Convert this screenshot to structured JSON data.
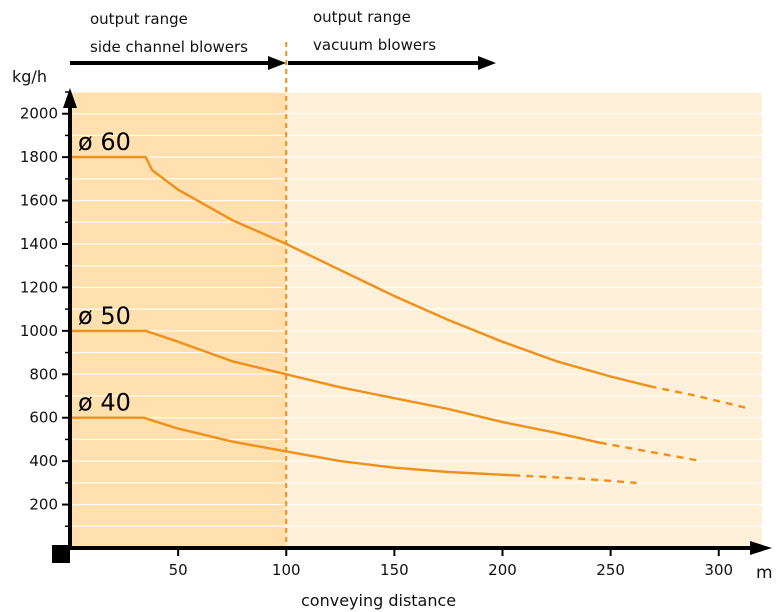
{
  "colors": {
    "zone_side_channel": "#FFE0AE",
    "zone_vacuum": "#FFF0D9",
    "curve": "#F0901A",
    "divider": "#F0901A",
    "grid": "#ffffff",
    "axis": "#000000"
  },
  "header": {
    "side_channel_line1": "output range",
    "side_channel_line2": "side channel blowers",
    "vacuum_line1": "output range",
    "vacuum_line2": "vacuum blowers"
  },
  "chart_data": {
    "type": "line",
    "xlabel": "conveying distance",
    "x_unit": "m",
    "ylabel": "kg/h",
    "xlim": [
      0,
      320
    ],
    "ylim": [
      0,
      2100
    ],
    "x_ticks": [
      50,
      100,
      150,
      200,
      250,
      300
    ],
    "x_tick_labels": [
      "50",
      "100",
      "150",
      "200",
      "250",
      "300"
    ],
    "y_ticks": [
      200,
      400,
      600,
      800,
      1000,
      1200,
      1400,
      1600,
      1800,
      2000
    ],
    "y_tick_labels": [
      "200",
      "400",
      "600",
      "800",
      "1000",
      "1200",
      "1400",
      "1600",
      "1800",
      "2000"
    ],
    "divider_x": 100,
    "zones": [
      {
        "name": "output range side channel blowers",
        "x_range": [
          0,
          100
        ]
      },
      {
        "name": "output range vacuum blowers",
        "x_range": [
          100,
          320
        ]
      }
    ],
    "series": [
      {
        "name": "ø 60",
        "values_solid": [
          [
            0,
            1800
          ],
          [
            35,
            1800
          ],
          [
            38,
            1740
          ],
          [
            50,
            1650
          ],
          [
            75,
            1510
          ],
          [
            100,
            1400
          ],
          [
            125,
            1280
          ],
          [
            150,
            1160
          ],
          [
            175,
            1050
          ],
          [
            200,
            950
          ],
          [
            225,
            860
          ],
          [
            250,
            790
          ],
          [
            268,
            745
          ]
        ],
        "values_dashed": [
          [
            268,
            745
          ],
          [
            290,
            700
          ],
          [
            315,
            640
          ]
        ]
      },
      {
        "name": "ø 50",
        "values_solid": [
          [
            0,
            1000
          ],
          [
            35,
            1000
          ],
          [
            50,
            950
          ],
          [
            75,
            860
          ],
          [
            100,
            800
          ],
          [
            125,
            740
          ],
          [
            150,
            690
          ],
          [
            175,
            640
          ],
          [
            200,
            580
          ],
          [
            225,
            530
          ],
          [
            245,
            485
          ]
        ],
        "values_dashed": [
          [
            245,
            485
          ],
          [
            270,
            440
          ],
          [
            292,
            400
          ]
        ]
      },
      {
        "name": "ø 40",
        "values_solid": [
          [
            0,
            600
          ],
          [
            34,
            600
          ],
          [
            50,
            550
          ],
          [
            75,
            490
          ],
          [
            100,
            445
          ],
          [
            125,
            400
          ],
          [
            150,
            370
          ],
          [
            175,
            350
          ],
          [
            205,
            335
          ]
        ],
        "values_dashed": [
          [
            205,
            335
          ],
          [
            235,
            320
          ],
          [
            262,
            300
          ]
        ]
      }
    ]
  }
}
